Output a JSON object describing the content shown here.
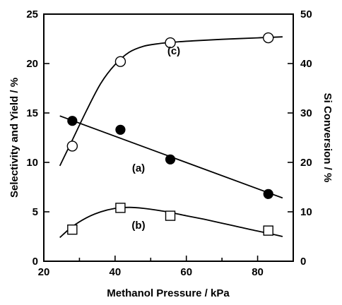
{
  "chart_data": {
    "type": "scatter",
    "xlabel": "Methanol Pressure / kPa",
    "ylabel": "Selectivity and Yield / %",
    "y2label": "Si Conversion / %",
    "xlim": [
      20,
      90
    ],
    "ylim": [
      0,
      25
    ],
    "y2lim": [
      0,
      50
    ],
    "x_ticks": [
      20,
      40,
      60,
      80
    ],
    "y_ticks": [
      0,
      5,
      10,
      15,
      20,
      25
    ],
    "y2_ticks": [
      0,
      10,
      20,
      30,
      40,
      50
    ],
    "grid": false,
    "series": [
      {
        "label": "(a)",
        "axis": "left",
        "marker": "filled-circle",
        "x": [
          28,
          41.5,
          55.5,
          83
        ],
        "y": [
          14.2,
          13.3,
          10.3,
          6.8
        ],
        "fit": {
          "x": [
            24.5,
            87
          ],
          "y": [
            14.7,
            6.4
          ]
        }
      },
      {
        "label": "(b)",
        "axis": "left",
        "marker": "open-square",
        "x": [
          28,
          41.5,
          55.5,
          83
        ],
        "y": [
          3.2,
          5.4,
          4.6,
          3.1
        ],
        "fit": {
          "x": [
            24.5,
            28,
            32,
            36,
            40,
            44,
            48,
            52,
            56,
            60,
            65,
            70,
            75,
            80,
            84,
            87
          ],
          "y": [
            2.4,
            3.5,
            4.4,
            5.0,
            5.35,
            5.45,
            5.35,
            5.15,
            4.9,
            4.6,
            4.25,
            3.85,
            3.45,
            3.05,
            2.75,
            2.5
          ]
        }
      },
      {
        "label": "(c)",
        "axis": "right",
        "marker": "open-circle",
        "x": [
          28,
          41.5,
          55.5,
          83
        ],
        "y": [
          23.3,
          40.4,
          44.2,
          45.2
        ],
        "fit": {
          "x": [
            24.5,
            28,
            32,
            36,
            40,
            44,
            48,
            52,
            56,
            62,
            70,
            80,
            87
          ],
          "y": [
            19.3,
            24.5,
            30.5,
            36.0,
            39.8,
            42.3,
            43.5,
            44.0,
            44.3,
            44.6,
            44.9,
            45.2,
            45.4
          ]
        }
      }
    ]
  }
}
